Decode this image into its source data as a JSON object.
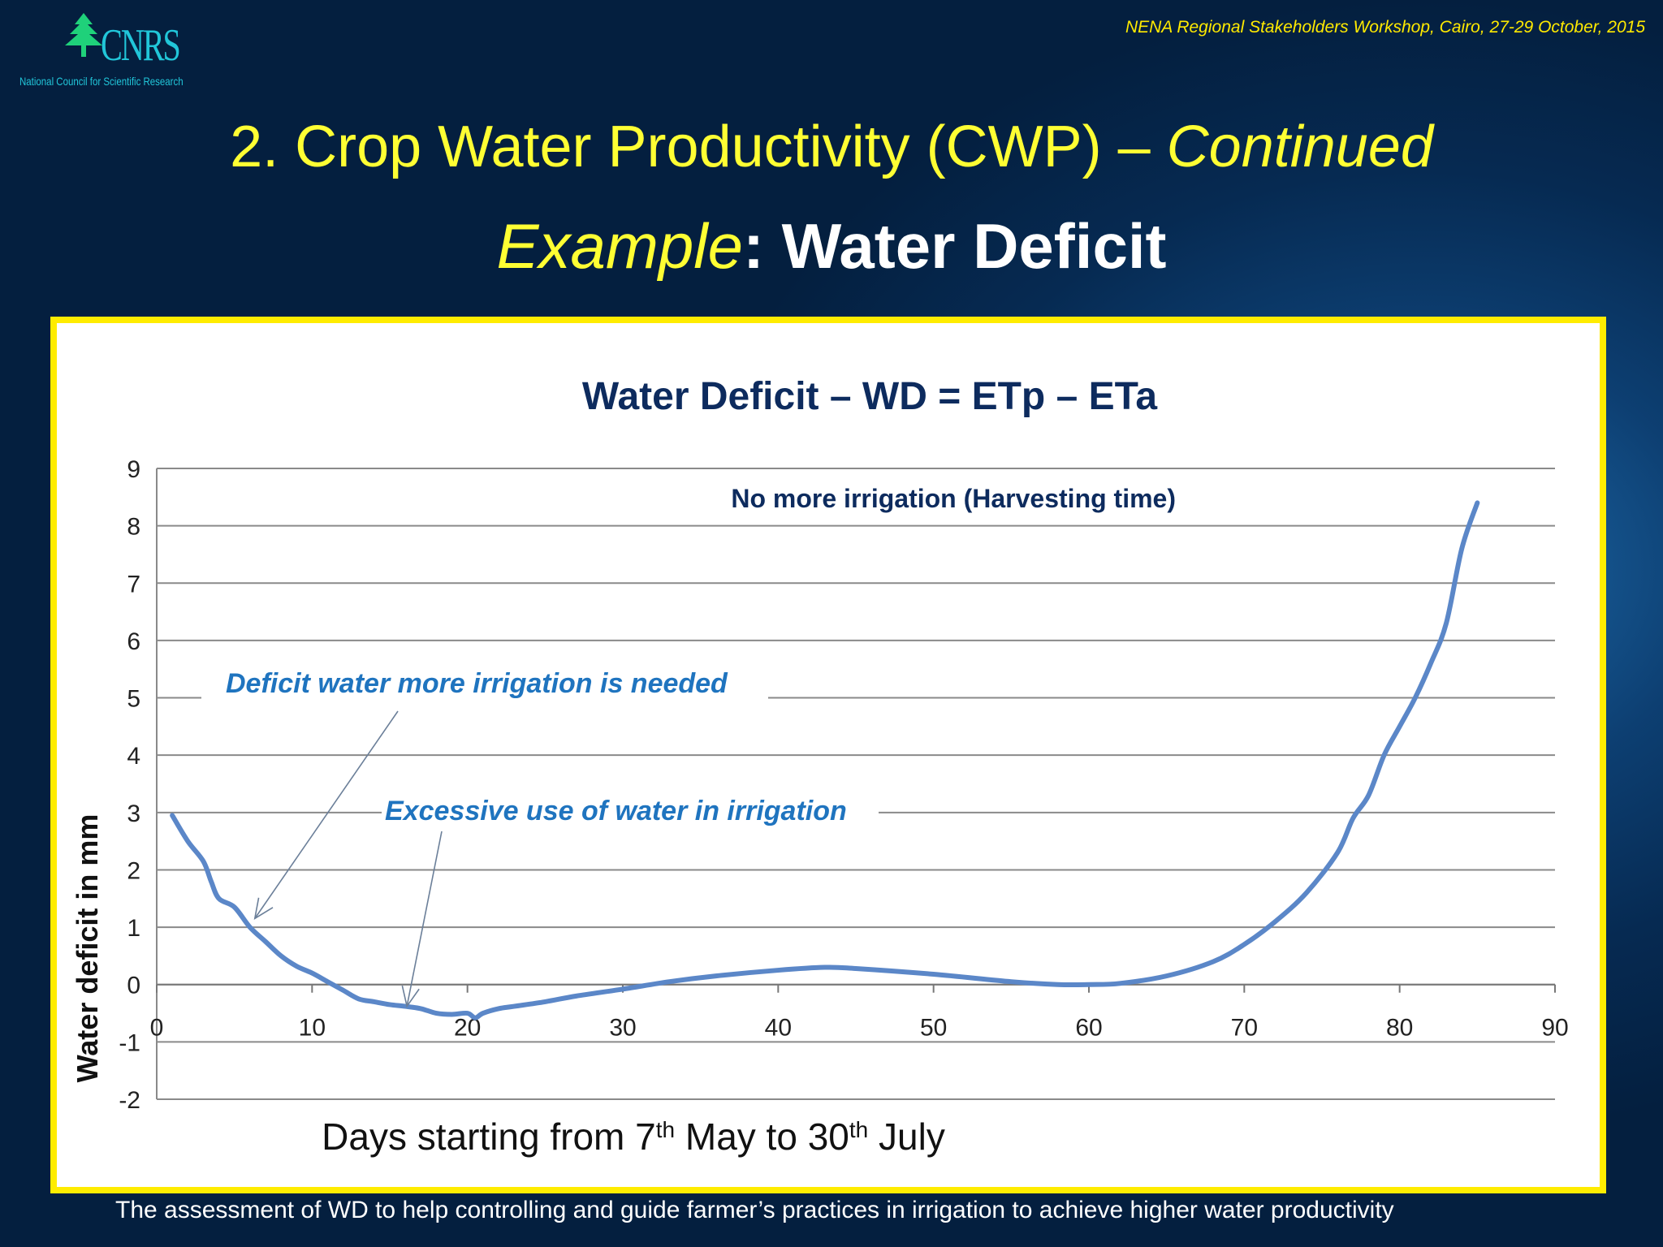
{
  "header": {
    "logo_text": "CNRS",
    "logo_tagline": "National Council for Scientific Research",
    "workshop": "NENA Regional  Stakeholders Workshop, Cairo, 27-29 October, 2015",
    "title_main": "2. Crop Water Productivity (CWP)  – ",
    "title_continued": "Continued",
    "subtitle_example": "Example",
    "subtitle_rest": ": Water Deficit"
  },
  "footer": "The assessment of WD  to help controlling and guide farmer’s practices in irrigation to achieve higher water productivity",
  "colors": {
    "title_yellow": "#ffff33",
    "panel_border": "#ffec00",
    "series_line": "#5b87c8",
    "annotation_blue": "#1f74bf",
    "chart_title_navy": "#0d2b5e"
  },
  "chart_data": {
    "type": "line",
    "title": "Water Deficit – WD = ETp – ETa",
    "ylabel": "Water deficit in mm",
    "xlabel_pre": "Days starting from 7",
    "xlabel_sup1": "th",
    "xlabel_mid": " May to 30",
    "xlabel_sup2": "th",
    "xlabel_post": " July",
    "xlim": [
      0,
      90
    ],
    "ylim": [
      -2,
      9
    ],
    "xticks": [
      0,
      10,
      20,
      30,
      40,
      50,
      60,
      70,
      80,
      90
    ],
    "yticks": [
      -2,
      -1,
      0,
      1,
      2,
      3,
      4,
      5,
      6,
      7,
      8,
      9
    ],
    "grid": true,
    "series": [
      {
        "x": [
          1,
          2,
          3,
          3.5,
          4,
          5,
          6,
          7,
          8,
          9,
          10,
          11,
          12,
          13,
          14,
          15,
          16,
          17,
          18,
          19,
          20,
          20.5,
          21,
          22,
          23,
          25,
          27,
          30,
          33,
          36,
          40,
          43,
          45,
          50,
          55,
          58,
          60,
          62,
          65,
          68,
          70,
          72,
          74,
          76,
          77,
          78,
          79,
          80,
          81,
          82,
          83,
          84,
          85
        ],
        "y": [
          2.95,
          2.5,
          2.15,
          1.8,
          1.5,
          1.35,
          1.0,
          0.75,
          0.5,
          0.32,
          0.2,
          0.05,
          -0.1,
          -0.25,
          -0.3,
          -0.35,
          -0.38,
          -0.42,
          -0.5,
          -0.52,
          -0.5,
          -0.58,
          -0.5,
          -0.42,
          -0.38,
          -0.3,
          -0.2,
          -0.08,
          0.05,
          0.15,
          0.25,
          0.3,
          0.28,
          0.18,
          0.05,
          0.0,
          0.0,
          0.02,
          0.15,
          0.4,
          0.7,
          1.1,
          1.6,
          2.3,
          2.9,
          3.3,
          4.0,
          4.5,
          5.0,
          5.6,
          6.3,
          7.6,
          8.4
        ]
      }
    ],
    "annotations": [
      {
        "text": "No more irrigation (Harvesting time)"
      },
      {
        "text": "Deficit water more irrigation is needed",
        "arrow_to": [
          6,
          1.35
        ]
      },
      {
        "text": "Excessive use of water in irrigation",
        "arrow_to": [
          16,
          -0.35
        ]
      }
    ]
  }
}
